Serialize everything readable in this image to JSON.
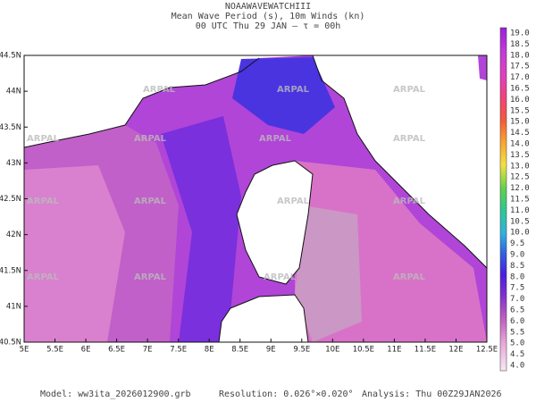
{
  "header": {
    "title": "NOAAWAVEWATCHIII",
    "subtitle": "Mean Wave Period (s), 10m Winds (kn)",
    "time": "00 UTC Thu 29 JAN  —  τ = 00h"
  },
  "map": {
    "lat_labels": [
      "44.5N",
      "44N",
      "43.5N",
      "43N",
      "42.5N",
      "42N",
      "41.5N",
      "41N",
      "40.5N"
    ],
    "lon_labels": [
      "5E",
      "5.5E",
      "6E",
      "6.5E",
      "7E",
      "7.5E",
      "8E",
      "8.5E",
      "9E",
      "9.5E",
      "10E",
      "10.5E",
      "11E",
      "11.5E",
      "12E",
      "12.5E"
    ],
    "watermark": "ARPAL"
  },
  "colorbar": {
    "labels": [
      "19.0",
      "18.5",
      "18.0",
      "17.5",
      "17.0",
      "16.5",
      "16.0",
      "15.5",
      "15.0",
      "14.5",
      "14.0",
      "13.5",
      "13.0",
      "12.5",
      "12.0",
      "11.5",
      "11.0",
      "10.5",
      "10.0",
      "9.5",
      "9.0",
      "8.5",
      "8.0",
      "7.5",
      "7.0",
      "6.5",
      "6.0",
      "5.5",
      "5.0",
      "4.5",
      "4.0"
    ]
  },
  "footer": {
    "model": "Model:  ww3ita_2026012900.grb",
    "resolution": "Resolution: 0.026°×0.020°",
    "analysis": "Analysis: Thu 00Z29JAN2026"
  }
}
